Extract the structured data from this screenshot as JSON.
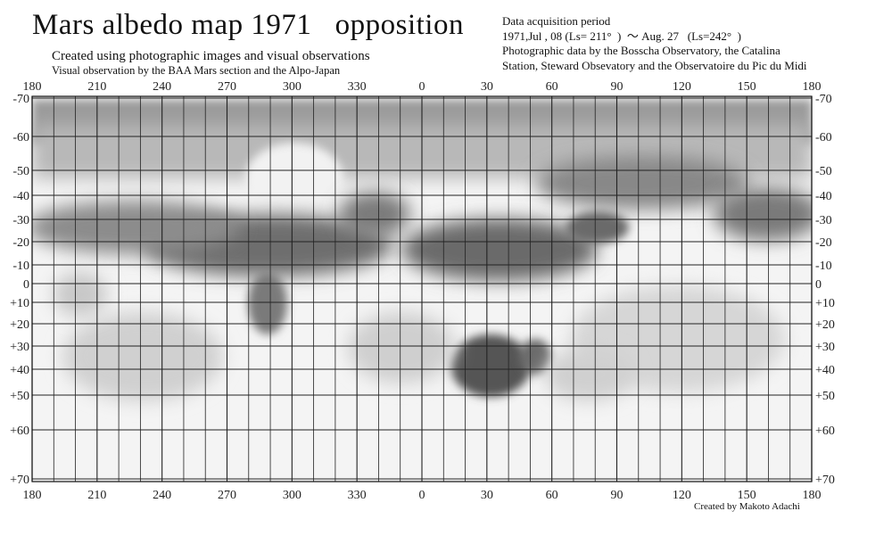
{
  "header": {
    "title": "Mars albedo map 1971   opposition",
    "subtitle_1": "Created using photographic images and visual observations",
    "subtitle_2": "Visual observation by the BAA Mars section and the Alpo-Japan"
  },
  "info": {
    "period_label": "Data acquisition period",
    "period_value": "1971,Jul , 08 (Ls= 211°  )  〜 Aug. 27   (Ls=242°  )",
    "photo_line_1": "Photographic data by the Bosscha Observatory, the Catalina",
    "photo_line_2": "Station, Steward Obsevatory and the Observatoire du Pic du Midi"
  },
  "credit": "Created by Makoto Adachi",
  "longitude_labels": [
    "180",
    "210",
    "240",
    "270",
    "300",
    "330",
    "0",
    "30",
    "60",
    "90",
    "120",
    "150",
    "180"
  ],
  "latitude_labels": [
    "-70",
    "-60",
    "-50",
    "-40",
    "-30",
    "-20",
    "-10",
    "0",
    "+10",
    "+20",
    "+30",
    "+40",
    "+50",
    "+60",
    "+70"
  ],
  "latitude_values": [
    -70,
    -60,
    -50,
    -40,
    -30,
    -20,
    -10,
    0,
    10,
    20,
    30,
    40,
    50,
    60,
    70
  ],
  "dark_features": [
    {
      "name": "south-polar-band",
      "lon": 0,
      "lat": -58
    },
    {
      "name": "mare-sirenum",
      "lon": 160,
      "lat": -30
    },
    {
      "name": "mare-cimmerium",
      "lon": 215,
      "lat": -22
    },
    {
      "name": "mare-tyrrhenum",
      "lon": 255,
      "lat": -18
    },
    {
      "name": "syrtis-major",
      "lon": 290,
      "lat": 10
    },
    {
      "name": "mare-erythraeum",
      "lon": 20,
      "lat": -25
    },
    {
      "name": "acidalium",
      "lon": 35,
      "lat": 35
    },
    {
      "name": "hellas-bright",
      "lon": 290,
      "lat": -45
    }
  ]
}
